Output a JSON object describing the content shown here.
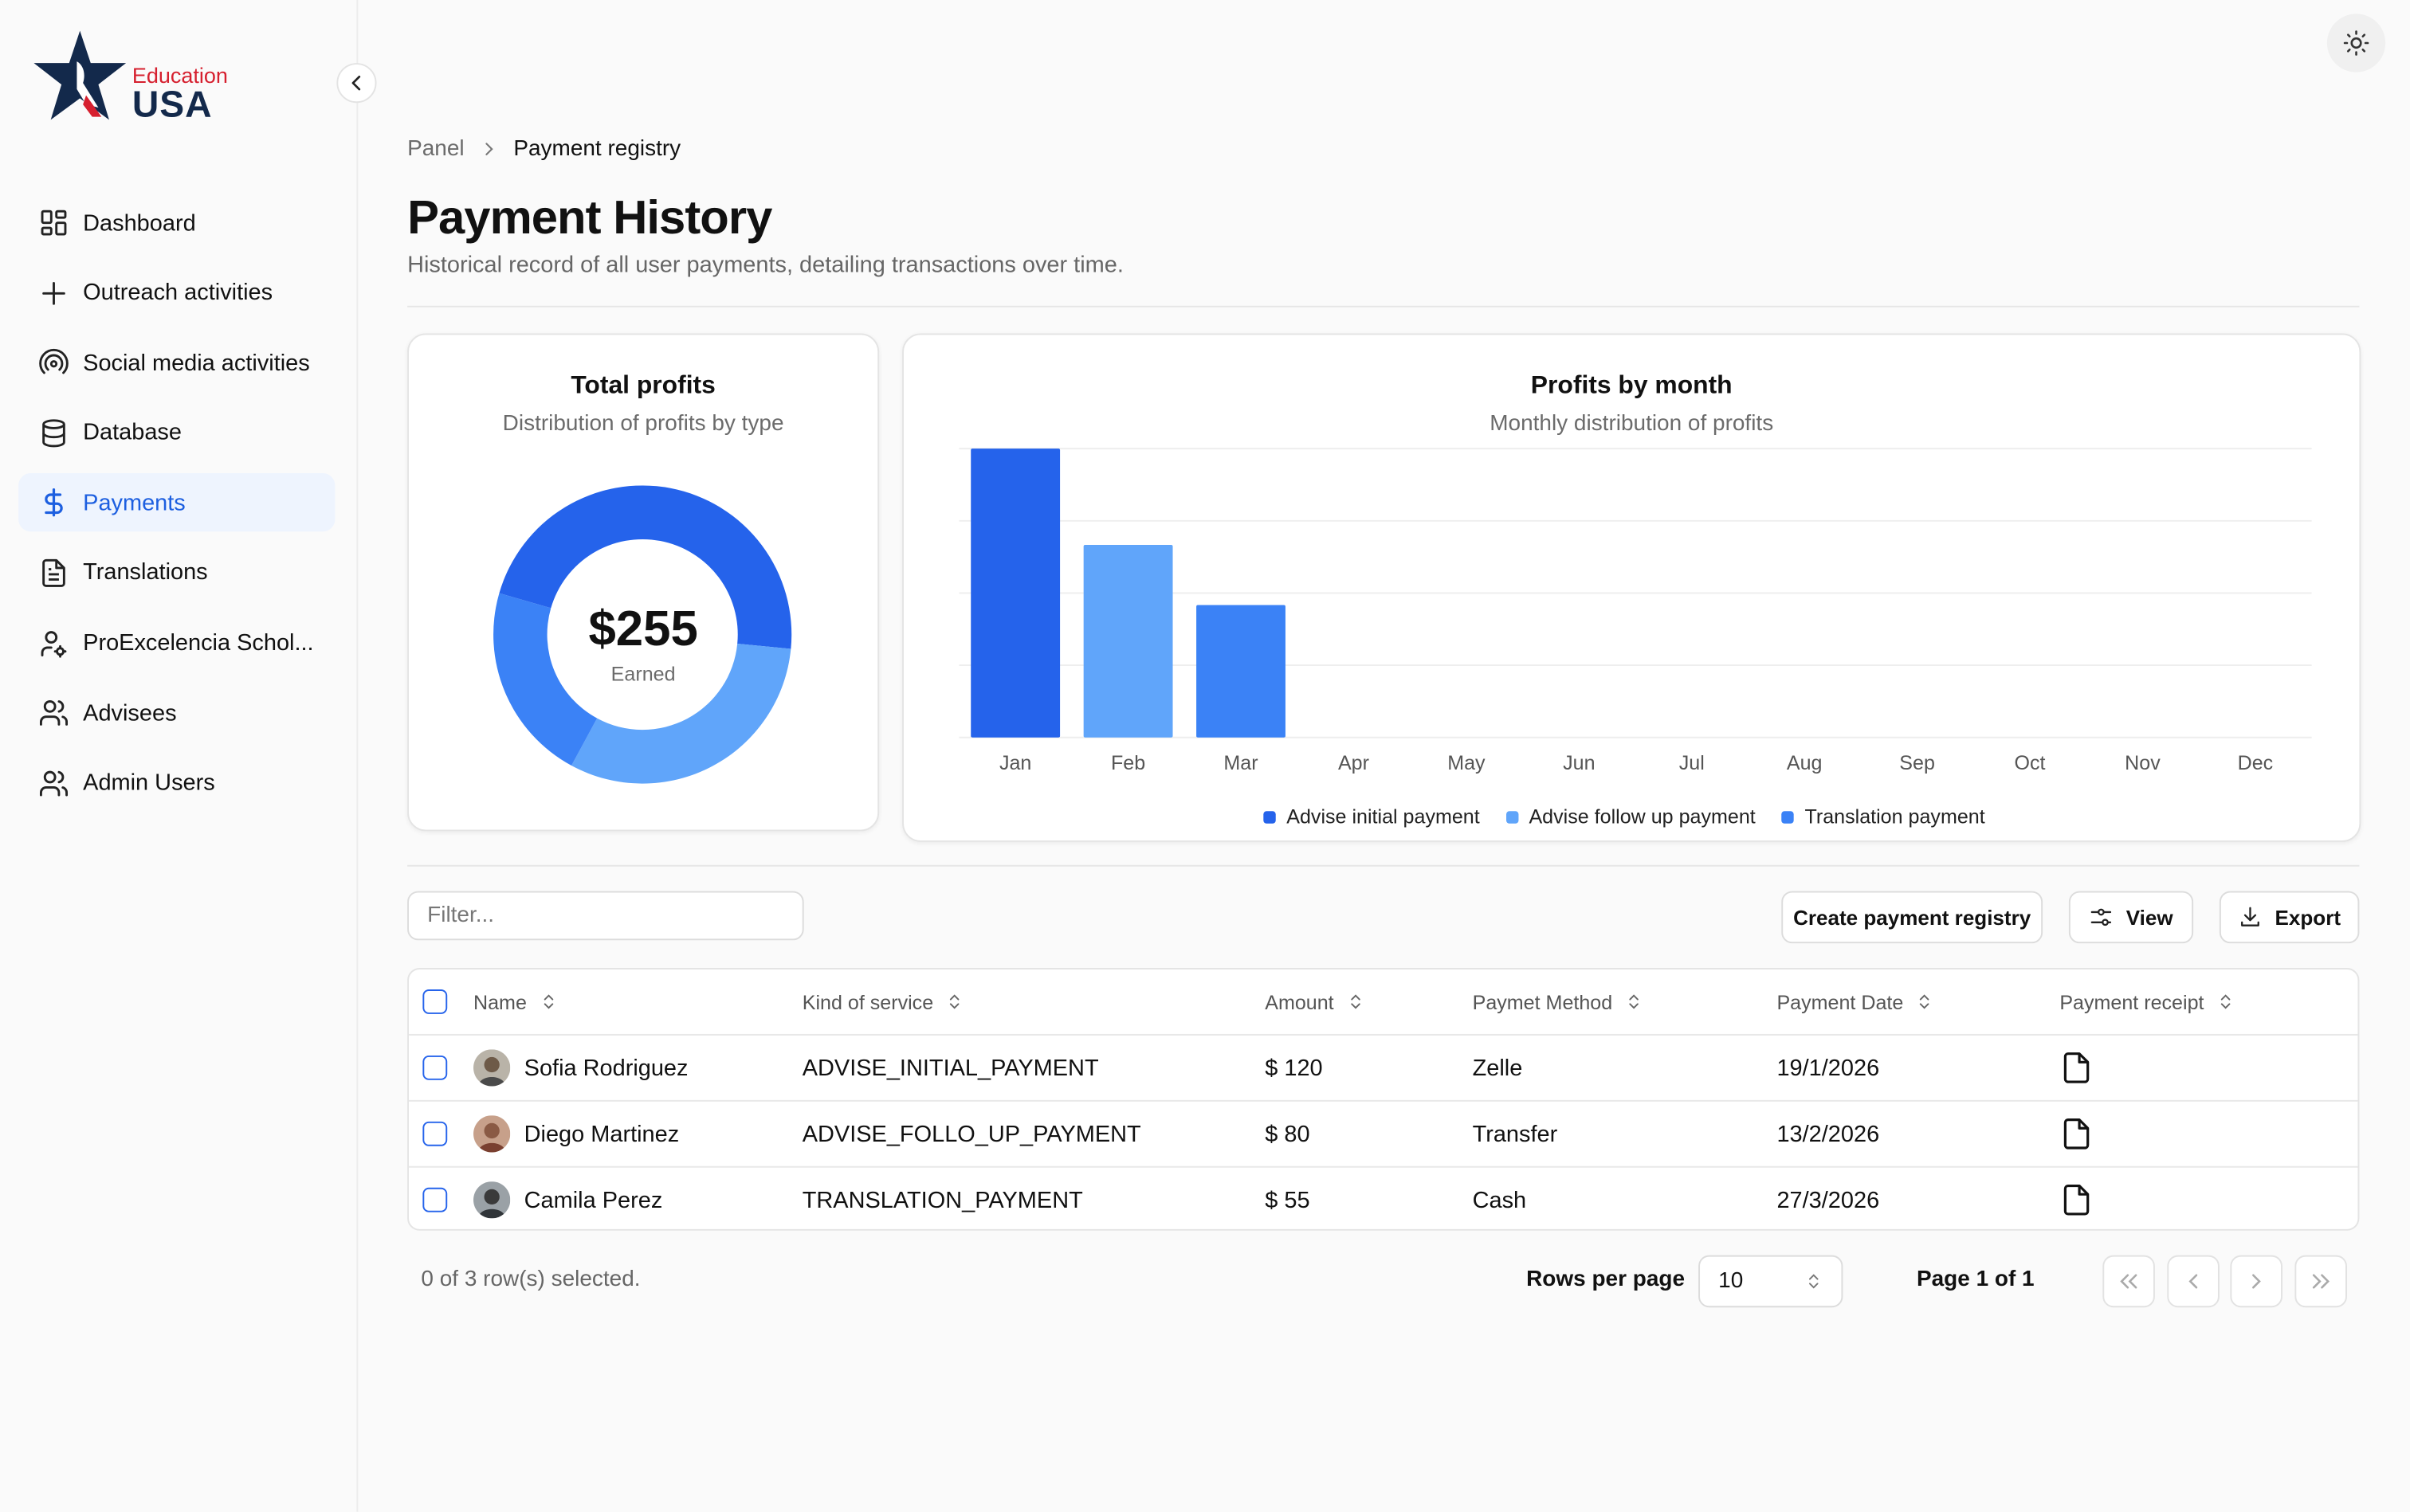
{
  "logo": {
    "top": "Education",
    "bottom": "USA"
  },
  "sidebar": {
    "items": [
      {
        "label": "Dashboard",
        "icon": "dashboard-grid-icon"
      },
      {
        "label": "Outreach activities",
        "icon": "plus-icon"
      },
      {
        "label": "Social media activities",
        "icon": "radio-broadcast-icon"
      },
      {
        "label": "Database",
        "icon": "database-icon"
      },
      {
        "label": "Payments",
        "icon": "dollar-icon",
        "active": true
      },
      {
        "label": "Translations",
        "icon": "document-text-icon"
      },
      {
        "label": "ProExcelencia Schol...",
        "icon": "user-cog-icon"
      },
      {
        "label": "Advisees",
        "icon": "users-icon"
      },
      {
        "label": "Admin Users",
        "icon": "users-icon"
      }
    ]
  },
  "breadcrumb": {
    "parent": "Panel",
    "current": "Payment registry"
  },
  "page": {
    "title": "Payment History",
    "subtitle": "Historical record of all user payments, detailing transactions over time."
  },
  "total_profits": {
    "title": "Total profits",
    "subtitle": "Distribution of profits by type",
    "value": "$255",
    "value_label": "Earned"
  },
  "profits_by_month": {
    "title": "Profits by month",
    "subtitle": "Monthly distribution of profits"
  },
  "chart_data": [
    {
      "type": "pie",
      "title": "Total profits",
      "labels": [
        "Advise initial payment",
        "Advise follow up payment",
        "Translation payment"
      ],
      "values": [
        120,
        80,
        55
      ],
      "colors": [
        "#2563eb",
        "#60a5fa",
        "#3b82f6"
      ]
    },
    {
      "type": "bar",
      "title": "Profits by month",
      "categories": [
        "Jan",
        "Feb",
        "Mar",
        "Apr",
        "May",
        "Jun",
        "Jul",
        "Aug",
        "Sep",
        "Oct",
        "Nov",
        "Dec"
      ],
      "values": [
        120,
        80,
        55,
        0,
        0,
        0,
        0,
        0,
        0,
        0,
        0,
        0
      ],
      "bar_colors": [
        "#2563eb",
        "#60a5fa",
        "#3b82f6",
        "#3b82f6",
        "#3b82f6",
        "#3b82f6",
        "#3b82f6",
        "#3b82f6",
        "#3b82f6",
        "#3b82f6",
        "#3b82f6",
        "#3b82f6"
      ],
      "ylim": [
        0,
        120
      ],
      "grid": true,
      "legend": [
        {
          "name": "Advise initial payment",
          "color": "#2563eb"
        },
        {
          "name": "Advise follow up payment",
          "color": "#60a5fa"
        },
        {
          "name": "Translation payment",
          "color": "#3b82f6"
        }
      ]
    }
  ],
  "toolbar": {
    "filter_placeholder": "Filter...",
    "create_label": "Create payment registry",
    "view_label": "View",
    "export_label": "Export"
  },
  "table": {
    "headers": [
      "Name",
      "Kind of service",
      "Amount",
      "Paymet Method",
      "Payment Date",
      "Payment receipt"
    ],
    "rows": [
      {
        "name": "Sofia Rodriguez",
        "service": "ADVISE_INITIAL_PAYMENT",
        "amount": "$ 120",
        "method": "Zelle",
        "date": "19/1/2026"
      },
      {
        "name": "Diego Martinez",
        "service": "ADVISE_FOLLO_UP_PAYMENT",
        "amount": "$ 80",
        "method": "Transfer",
        "date": "13/2/2026"
      },
      {
        "name": "Camila Perez",
        "service": "TRANSLATION_PAYMENT",
        "amount": "$ 55",
        "method": "Cash",
        "date": "27/3/2026"
      }
    ]
  },
  "pagination": {
    "selected_text": "0 of 3 row(s) selected.",
    "rows_per_page_label": "Rows per page",
    "rows_per_page_value": "10",
    "page_info": "Page 1 of 1"
  }
}
